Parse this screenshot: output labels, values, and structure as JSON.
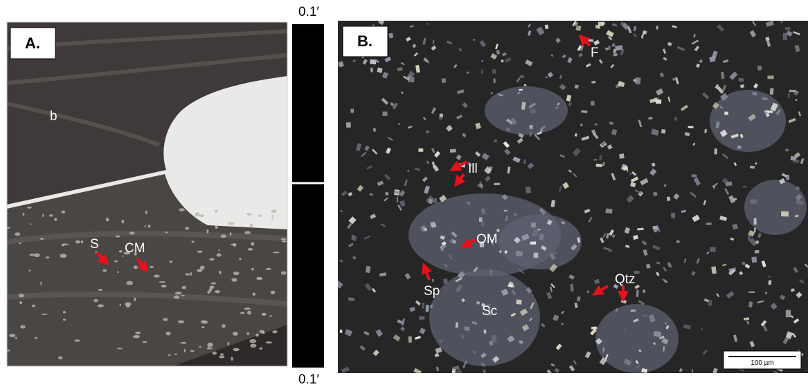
{
  "panel_a": {
    "label": "A.",
    "annotations": [
      "b",
      "S",
      "CM"
    ],
    "scale_top": "0.1′",
    "scale_bottom": "0.1′"
  },
  "panel_b": {
    "label": "B.",
    "annotations": [
      "F",
      "Ill",
      "OM",
      "Sp",
      "Sc",
      "Qtz"
    ],
    "scale_bar": "100 µm"
  }
}
